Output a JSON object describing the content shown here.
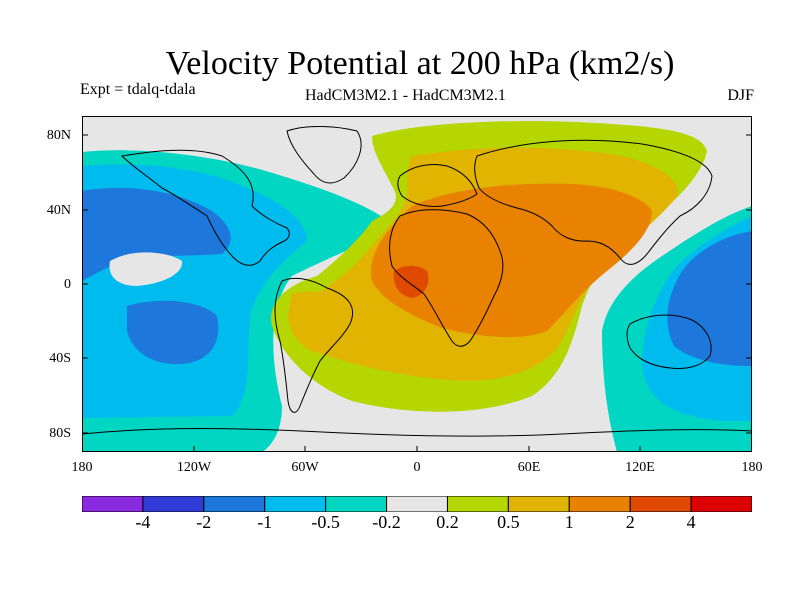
{
  "header": {
    "title": "Velocity Potential at 200 hPa (km2/s)",
    "experiment": "Expt = tdalq-tdala",
    "model": "HadCM3M2.1 - HadCM3M2.1",
    "season": "DJF"
  },
  "axes": {
    "lat_labels": [
      "80N",
      "40N",
      "0",
      "40S",
      "80S"
    ],
    "lon_labels": [
      "180",
      "120W",
      "60W",
      "0",
      "60E",
      "120E",
      "180"
    ]
  },
  "colorbar": {
    "colors": [
      "#8a2be2",
      "#2f3bd4",
      "#1e78dc",
      "#00bbee",
      "#00d6c2",
      "#e6e6e6",
      "#b5d600",
      "#e0b400",
      "#e88200",
      "#e04a00",
      "#dd0000"
    ],
    "labels": [
      "-4",
      "-2",
      "-1",
      "-0.5",
      "-0.2",
      "0.2",
      "0.5",
      "1",
      "2",
      "4"
    ]
  }
}
